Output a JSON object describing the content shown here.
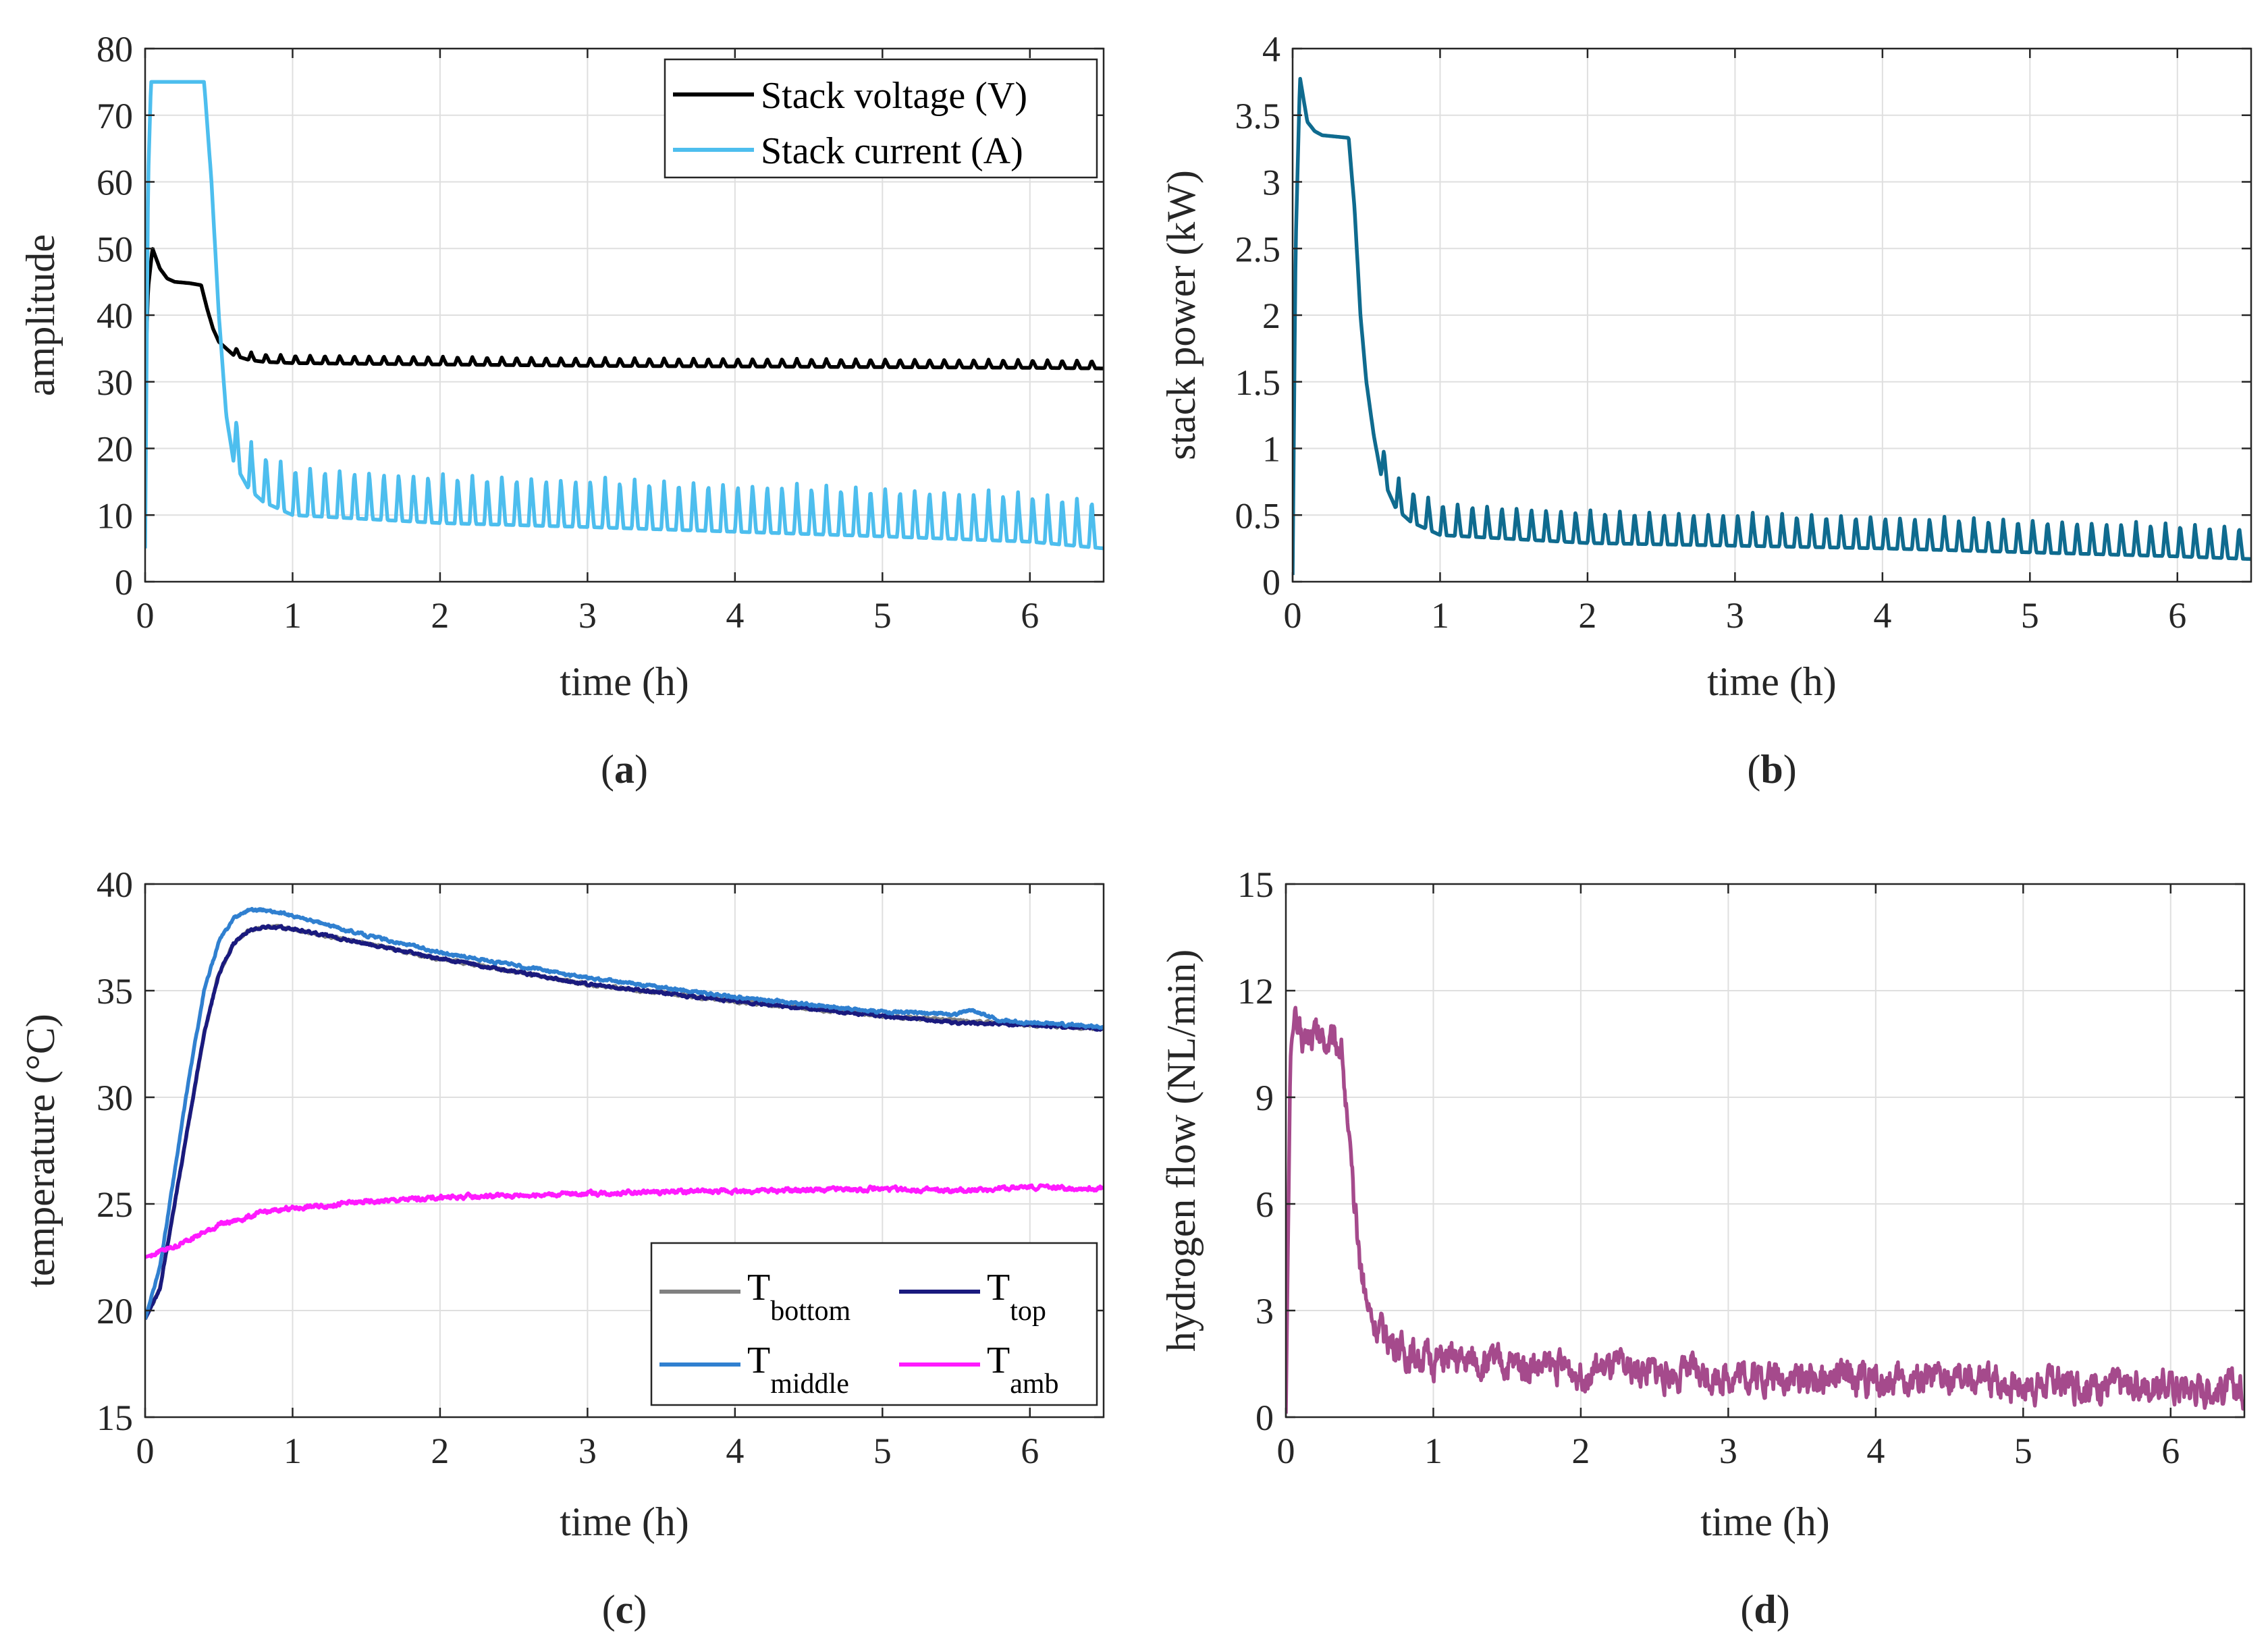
{
  "chart_data": [
    {
      "panel": "a",
      "caption": "(a)",
      "caption_letter": "a",
      "type": "line",
      "xlabel": "time (h)",
      "ylabel": "amplitude",
      "xlim": [
        0,
        6.5
      ],
      "ylim": [
        0,
        80
      ],
      "xticks": [
        0,
        1,
        2,
        3,
        4,
        5,
        6
      ],
      "yticks": [
        0,
        10,
        20,
        30,
        40,
        50,
        60,
        70,
        80
      ],
      "grid": true,
      "legend_position": "top-right",
      "series": [
        {
          "name": "Stack voltage (V)",
          "color": "#000000",
          "legend": true,
          "points": [
            [
              0,
              30
            ],
            [
              0.02,
              44
            ],
            [
              0.05,
              50
            ],
            [
              0.1,
              47
            ],
            [
              0.15,
              45.5
            ],
            [
              0.2,
              45
            ],
            [
              0.3,
              44.8
            ],
            [
              0.38,
              44.5
            ],
            [
              0.42,
              41
            ],
            [
              0.46,
              38
            ],
            [
              0.5,
              36
            ],
            [
              0.55,
              35
            ],
            [
              0.6,
              34
            ],
            [
              0.7,
              33.3
            ],
            [
              0.8,
              33
            ],
            [
              1,
              32.8
            ],
            [
              2,
              32.6
            ],
            [
              3,
              32.4
            ],
            [
              4,
              32.3
            ],
            [
              5,
              32.2
            ],
            [
              6,
              32.1
            ],
            [
              6.5,
              32
            ]
          ],
          "spikes": {
            "start": 0.6,
            "end": 6.5,
            "period": 0.1,
            "amplitude": 1.2,
            "width": 0.02
          }
        },
        {
          "name": "Stack current (A)",
          "color": "#4DBEEE",
          "legend": true,
          "points": [
            [
              0,
              5
            ],
            [
              0.02,
              60
            ],
            [
              0.04,
              75
            ],
            [
              0.4,
              75
            ],
            [
              0.45,
              60
            ],
            [
              0.5,
              40
            ],
            [
              0.55,
              25
            ],
            [
              0.6,
              18
            ],
            [
              0.7,
              14
            ],
            [
              0.8,
              12
            ],
            [
              1,
              10
            ],
            [
              2,
              8.8
            ],
            [
              3,
              8.2
            ],
            [
              4,
              7.5
            ],
            [
              5,
              6.8
            ],
            [
              6,
              6
            ],
            [
              6.5,
              5
            ]
          ],
          "spikes": {
            "start": 0.6,
            "end": 6.5,
            "period": 0.1,
            "amplitude": 7.5,
            "width": 0.02
          }
        }
      ]
    },
    {
      "panel": "b",
      "caption": "(b)",
      "caption_letter": "b",
      "type": "line",
      "xlabel": "time (h)",
      "ylabel": "stack power (kW)",
      "xlim": [
        0,
        6.5
      ],
      "ylim": [
        0,
        4
      ],
      "xticks": [
        0,
        1,
        2,
        3,
        4,
        5,
        6
      ],
      "yticks": [
        0,
        0.5,
        1,
        1.5,
        2,
        2.5,
        3,
        3.5,
        4
      ],
      "grid": true,
      "series": [
        {
          "name": "stack power",
          "color": "#0F6B8F",
          "legend": false,
          "points": [
            [
              0,
              0.05
            ],
            [
              0.02,
              2.5
            ],
            [
              0.05,
              3.78
            ],
            [
              0.1,
              3.45
            ],
            [
              0.15,
              3.38
            ],
            [
              0.2,
              3.35
            ],
            [
              0.38,
              3.33
            ],
            [
              0.42,
              2.8
            ],
            [
              0.46,
              2
            ],
            [
              0.5,
              1.5
            ],
            [
              0.55,
              1.1
            ],
            [
              0.6,
              0.8
            ],
            [
              0.7,
              0.55
            ],
            [
              0.8,
              0.45
            ],
            [
              1,
              0.35
            ],
            [
              2,
              0.29
            ],
            [
              3,
              0.27
            ],
            [
              4,
              0.25
            ],
            [
              5,
              0.22
            ],
            [
              6,
              0.19
            ],
            [
              6.5,
              0.17
            ]
          ],
          "spikes": {
            "start": 0.6,
            "end": 6.5,
            "period": 0.1,
            "amplitude": 0.25,
            "width": 0.02
          }
        }
      ]
    },
    {
      "panel": "c",
      "caption": "(c)",
      "caption_letter": "c",
      "type": "line",
      "xlabel": "time (h)",
      "ylabel": "temperature (°C)",
      "xlim": [
        0,
        6.5
      ],
      "ylim": [
        15,
        40
      ],
      "xticks": [
        0,
        1,
        2,
        3,
        4,
        5,
        6
      ],
      "yticks": [
        15,
        20,
        25,
        30,
        35,
        40
      ],
      "grid": true,
      "legend_position": "bottom-right",
      "series": [
        {
          "name": "T",
          "subscript": "bottom",
          "color": "#808080",
          "legend": true,
          "points": [
            [
              0,
              19.6
            ],
            [
              0.1,
              21
            ],
            [
              0.2,
              25
            ],
            [
              0.3,
              29
            ],
            [
              0.4,
              33
            ],
            [
              0.5,
              35.8
            ],
            [
              0.6,
              37.2
            ],
            [
              0.7,
              37.8
            ],
            [
              0.8,
              38
            ],
            [
              1,
              37.9
            ],
            [
              1.5,
              37.2
            ],
            [
              2,
              36.5
            ],
            [
              3,
              35.3
            ],
            [
              4,
              34.5
            ],
            [
              5,
              33.8
            ],
            [
              5.5,
              33.6
            ],
            [
              6,
              33.4
            ],
            [
              6.5,
              33.2
            ]
          ],
          "noise": 0.05
        },
        {
          "name": "T",
          "subscript": "top",
          "color": "#1A1A7E",
          "legend": true,
          "points": [
            [
              0,
              19.6
            ],
            [
              0.1,
              21
            ],
            [
              0.2,
              25
            ],
            [
              0.3,
              29
            ],
            [
              0.4,
              33
            ],
            [
              0.5,
              35.8
            ],
            [
              0.6,
              37.2
            ],
            [
              0.7,
              37.8
            ],
            [
              0.8,
              38
            ],
            [
              1,
              37.9
            ],
            [
              1.5,
              37.2
            ],
            [
              2,
              36.5
            ],
            [
              3,
              35.3
            ],
            [
              4,
              34.5
            ],
            [
              5,
              33.8
            ],
            [
              5.5,
              33.5
            ],
            [
              6,
              33.4
            ],
            [
              6.5,
              33.2
            ]
          ],
          "noise": 0.05
        },
        {
          "name": "T",
          "subscript": "middle",
          "color": "#3080D0",
          "legend": true,
          "points": [
            [
              0,
              19.6
            ],
            [
              0.1,
              22
            ],
            [
              0.2,
              26.5
            ],
            [
              0.3,
              31
            ],
            [
              0.4,
              35
            ],
            [
              0.5,
              37.3
            ],
            [
              0.6,
              38.4
            ],
            [
              0.7,
              38.8
            ],
            [
              0.8,
              38.8
            ],
            [
              1,
              38.5
            ],
            [
              1.5,
              37.6
            ],
            [
              2,
              36.8
            ],
            [
              3,
              35.6
            ],
            [
              4,
              34.7
            ],
            [
              5,
              34
            ],
            [
              5.5,
              33.9
            ],
            [
              5.6,
              34.1
            ],
            [
              5.8,
              33.6
            ],
            [
              6,
              33.5
            ],
            [
              6.5,
              33.3
            ]
          ],
          "noise": 0.05
        },
        {
          "name": "T",
          "subscript": "amb",
          "color": "#FF1AFF",
          "legend": true,
          "points": [
            [
              0,
              22.5
            ],
            [
              0.2,
              23
            ],
            [
              0.5,
              24
            ],
            [
              0.8,
              24.6
            ],
            [
              1,
              24.8
            ],
            [
              1.5,
              25.1
            ],
            [
              2,
              25.3
            ],
            [
              2.5,
              25.4
            ],
            [
              3,
              25.5
            ],
            [
              4,
              25.6
            ],
            [
              5,
              25.7
            ],
            [
              5.5,
              25.6
            ],
            [
              6,
              25.8
            ],
            [
              6.5,
              25.7
            ]
          ],
          "noise": 0.08
        }
      ]
    },
    {
      "panel": "d",
      "caption": "(d)",
      "caption_letter": "d",
      "type": "line",
      "xlabel": "time (h)",
      "ylabel": "hydrogen flow (NL/min)",
      "xlim": [
        0,
        6.5
      ],
      "ylim": [
        0,
        15
      ],
      "xticks": [
        0,
        1,
        2,
        3,
        4,
        5,
        6
      ],
      "yticks": [
        0,
        3,
        6,
        9,
        12,
        15
      ],
      "grid": true,
      "series": [
        {
          "name": "hydrogen flow",
          "color": "#A54A8C",
          "legend": false,
          "points": [
            [
              0,
              0.1
            ],
            [
              0.03,
              10
            ],
            [
              0.05,
              11.3
            ],
            [
              0.1,
              10.6
            ],
            [
              0.2,
              10.8
            ],
            [
              0.3,
              10.6
            ],
            [
              0.38,
              10.5
            ],
            [
              0.42,
              8
            ],
            [
              0.46,
              6
            ],
            [
              0.5,
              4.5
            ],
            [
              0.55,
              3.2
            ],
            [
              0.6,
              2.6
            ],
            [
              0.7,
              2.2
            ],
            [
              0.8,
              1.8
            ],
            [
              1,
              1.6
            ],
            [
              2,
              1.35
            ],
            [
              3,
              1.2
            ],
            [
              4,
              1.05
            ],
            [
              5,
              0.95
            ],
            [
              6,
              0.85
            ],
            [
              6.5,
              0.75
            ]
          ],
          "noise": 0.35
        }
      ]
    }
  ]
}
